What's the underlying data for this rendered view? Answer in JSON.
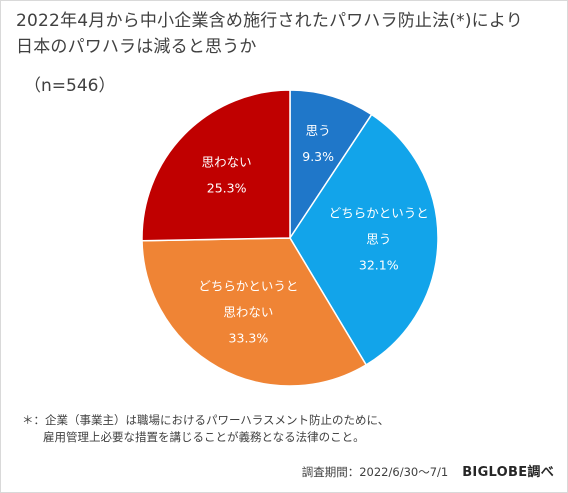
{
  "title": {
    "line1": "2022年4月から中小企業含め施行されたパワハラ防止法(*)により",
    "line2": "日本のパワハラは減ると思うか"
  },
  "sample_size": "（n=546）",
  "note": {
    "line1": "＊：企業（事業主）は職場におけるパワーハラスメント防止のために、",
    "line2": "雇用管理上必要な措置を講じることが義務となる法律のこと。"
  },
  "footer": {
    "period": "調査期間：2022/6/30〜7/1",
    "brand": "BIGLOBE調べ"
  },
  "chart_data": {
    "type": "pie",
    "start_angle_deg": 0,
    "direction": "clockwise",
    "slices": [
      {
        "label_lines": [
          "思う"
        ],
        "value": 9.3,
        "value_label": "9.3%",
        "color": "#1f77c9"
      },
      {
        "label_lines": [
          "どちらかというと",
          "思う"
        ],
        "value": 32.1,
        "value_label": "32.1%",
        "color": "#12a4ea"
      },
      {
        "label_lines": [
          "どちらかというと",
          "思わない"
        ],
        "value": 33.3,
        "value_label": "33.3%",
        "color": "#ef8435"
      },
      {
        "label_lines": [
          "思わない"
        ],
        "value": 25.3,
        "value_label": "25.3%",
        "color": "#c00000"
      }
    ]
  }
}
